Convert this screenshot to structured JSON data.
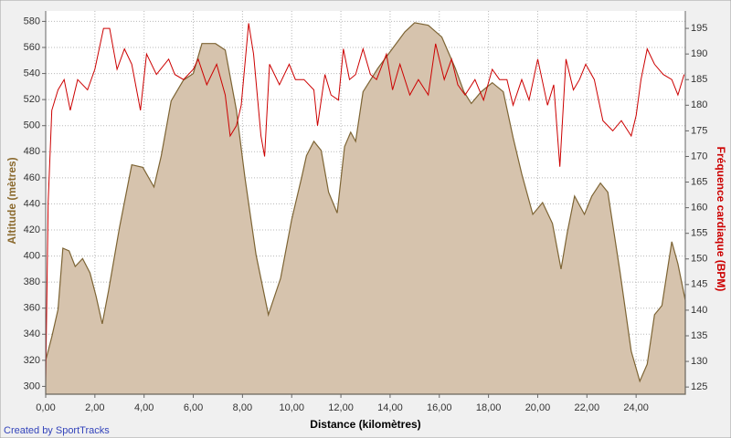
{
  "chart_data": {
    "type": "area",
    "xlabel": "Distance (kilomètres)",
    "ylabel": "Altitude (mètres)",
    "y2label": "Fréquence cardiaque (BPM)",
    "credit": "Created by SportTracks",
    "xlim": [
      0,
      26.0
    ],
    "ylim": [
      294,
      588
    ],
    "y2lim": [
      123.6,
      198.4
    ],
    "xticks": [
      {
        "value": 0,
        "label": "0,00"
      },
      {
        "value": 2,
        "label": "2,00"
      },
      {
        "value": 4,
        "label": "4,00"
      },
      {
        "value": 6,
        "label": "6,00"
      },
      {
        "value": 8,
        "label": "8,00"
      },
      {
        "value": 10,
        "label": "10,00"
      },
      {
        "value": 12,
        "label": "12,00"
      },
      {
        "value": 14,
        "label": "14,00"
      },
      {
        "value": 16,
        "label": "16,00"
      },
      {
        "value": 18,
        "label": "18,00"
      },
      {
        "value": 20,
        "label": "20,00"
      },
      {
        "value": 22,
        "label": "22,00"
      },
      {
        "value": 24,
        "label": "24,00"
      }
    ],
    "yticks": [
      300,
      320,
      340,
      360,
      380,
      400,
      420,
      440,
      460,
      480,
      500,
      520,
      540,
      560,
      580
    ],
    "y2ticks": [
      125,
      130,
      135,
      140,
      145,
      150,
      155,
      160,
      165,
      170,
      175,
      180,
      185,
      190,
      195
    ],
    "grid": true,
    "series": [
      {
        "type": "area",
        "axis": "y",
        "color": "#d6c3ad",
        "line_color": "#7d6434",
        "x": [
          0,
          0.25,
          0.5,
          0.7,
          0.95,
          1.2,
          1.5,
          1.8,
          2.05,
          2.3,
          2.55,
          3.0,
          3.5,
          3.95,
          4.4,
          4.7,
          5.1,
          5.6,
          6.0,
          6.35,
          6.9,
          7.3,
          7.75,
          8.1,
          8.55,
          9.05,
          9.55,
          10.0,
          10.4,
          10.6,
          10.9,
          11.2,
          11.5,
          11.85,
          12.15,
          12.4,
          12.6,
          12.9,
          13.5,
          14.05,
          14.6,
          15.0,
          15.55,
          16.1,
          16.65,
          17.0,
          17.3,
          17.7,
          18.15,
          18.6,
          19.0,
          19.35,
          19.8,
          20.2,
          20.6,
          20.95,
          21.2,
          21.5,
          21.9,
          22.2,
          22.55,
          22.85,
          23.35,
          23.8,
          24.15,
          24.45,
          24.75,
          25.05,
          25.45,
          25.7,
          26.0
        ],
        "values": [
          320,
          338,
          359,
          406,
          404,
          392,
          398,
          387,
          369,
          348,
          373,
          422,
          470,
          468,
          453,
          477,
          519,
          535,
          540,
          563,
          563,
          558,
          512,
          460,
          401,
          355,
          383,
          428,
          460,
          477,
          488,
          481,
          449,
          433,
          484,
          495,
          488,
          526,
          544,
          558,
          572,
          579,
          577,
          568,
          544,
          526,
          517,
          526,
          533,
          526,
          491,
          463,
          432,
          441,
          425,
          390,
          418,
          446,
          432,
          446,
          456,
          449,
          387,
          327,
          304,
          317,
          355,
          362,
          411,
          394,
          366
        ]
      },
      {
        "type": "line",
        "axis": "y2",
        "color": "#cc0000",
        "x": [
          0,
          0.1,
          0.25,
          0.5,
          0.75,
          1.0,
          1.3,
          1.7,
          2.0,
          2.35,
          2.6,
          2.9,
          3.2,
          3.5,
          3.85,
          4.1,
          4.5,
          5.0,
          5.25,
          5.6,
          6.0,
          6.2,
          6.55,
          6.95,
          7.3,
          7.5,
          7.75,
          7.95,
          8.25,
          8.45,
          8.75,
          8.9,
          9.1,
          9.5,
          9.9,
          10.15,
          10.5,
          10.9,
          11.05,
          11.35,
          11.6,
          11.9,
          12.1,
          12.35,
          12.6,
          12.9,
          13.2,
          13.45,
          13.85,
          14.1,
          14.4,
          14.8,
          15.15,
          15.55,
          15.85,
          16.2,
          16.5,
          16.75,
          17.05,
          17.45,
          17.8,
          18.15,
          18.45,
          18.75,
          19.0,
          19.35,
          19.65,
          20.0,
          20.4,
          20.65,
          20.9,
          21.15,
          21.45,
          21.7,
          21.95,
          22.3,
          22.65,
          23.05,
          23.4,
          23.8,
          24.0,
          24.2,
          24.45,
          24.75,
          25.1,
          25.45,
          25.7,
          25.95
        ],
        "values": [
          126,
          161,
          179,
          183,
          185,
          179,
          185,
          183,
          187,
          195,
          195,
          187,
          191,
          188,
          179,
          190,
          186,
          189,
          186,
          185,
          187,
          189,
          184,
          188,
          182,
          174,
          176,
          180,
          196,
          190,
          174,
          170,
          188,
          184,
          188,
          185,
          185,
          183,
          176,
          186,
          182,
          181,
          191,
          185,
          186,
          191,
          186,
          185,
          190,
          183,
          188,
          182,
          185,
          182,
          192,
          185,
          189,
          184,
          182,
          185,
          181,
          187,
          185,
          185,
          180,
          185,
          181,
          189,
          180,
          184,
          168,
          189,
          183,
          185,
          188,
          185,
          177,
          175,
          177,
          174,
          178,
          185,
          191,
          188,
          186,
          185,
          182,
          186
        ]
      }
    ]
  }
}
